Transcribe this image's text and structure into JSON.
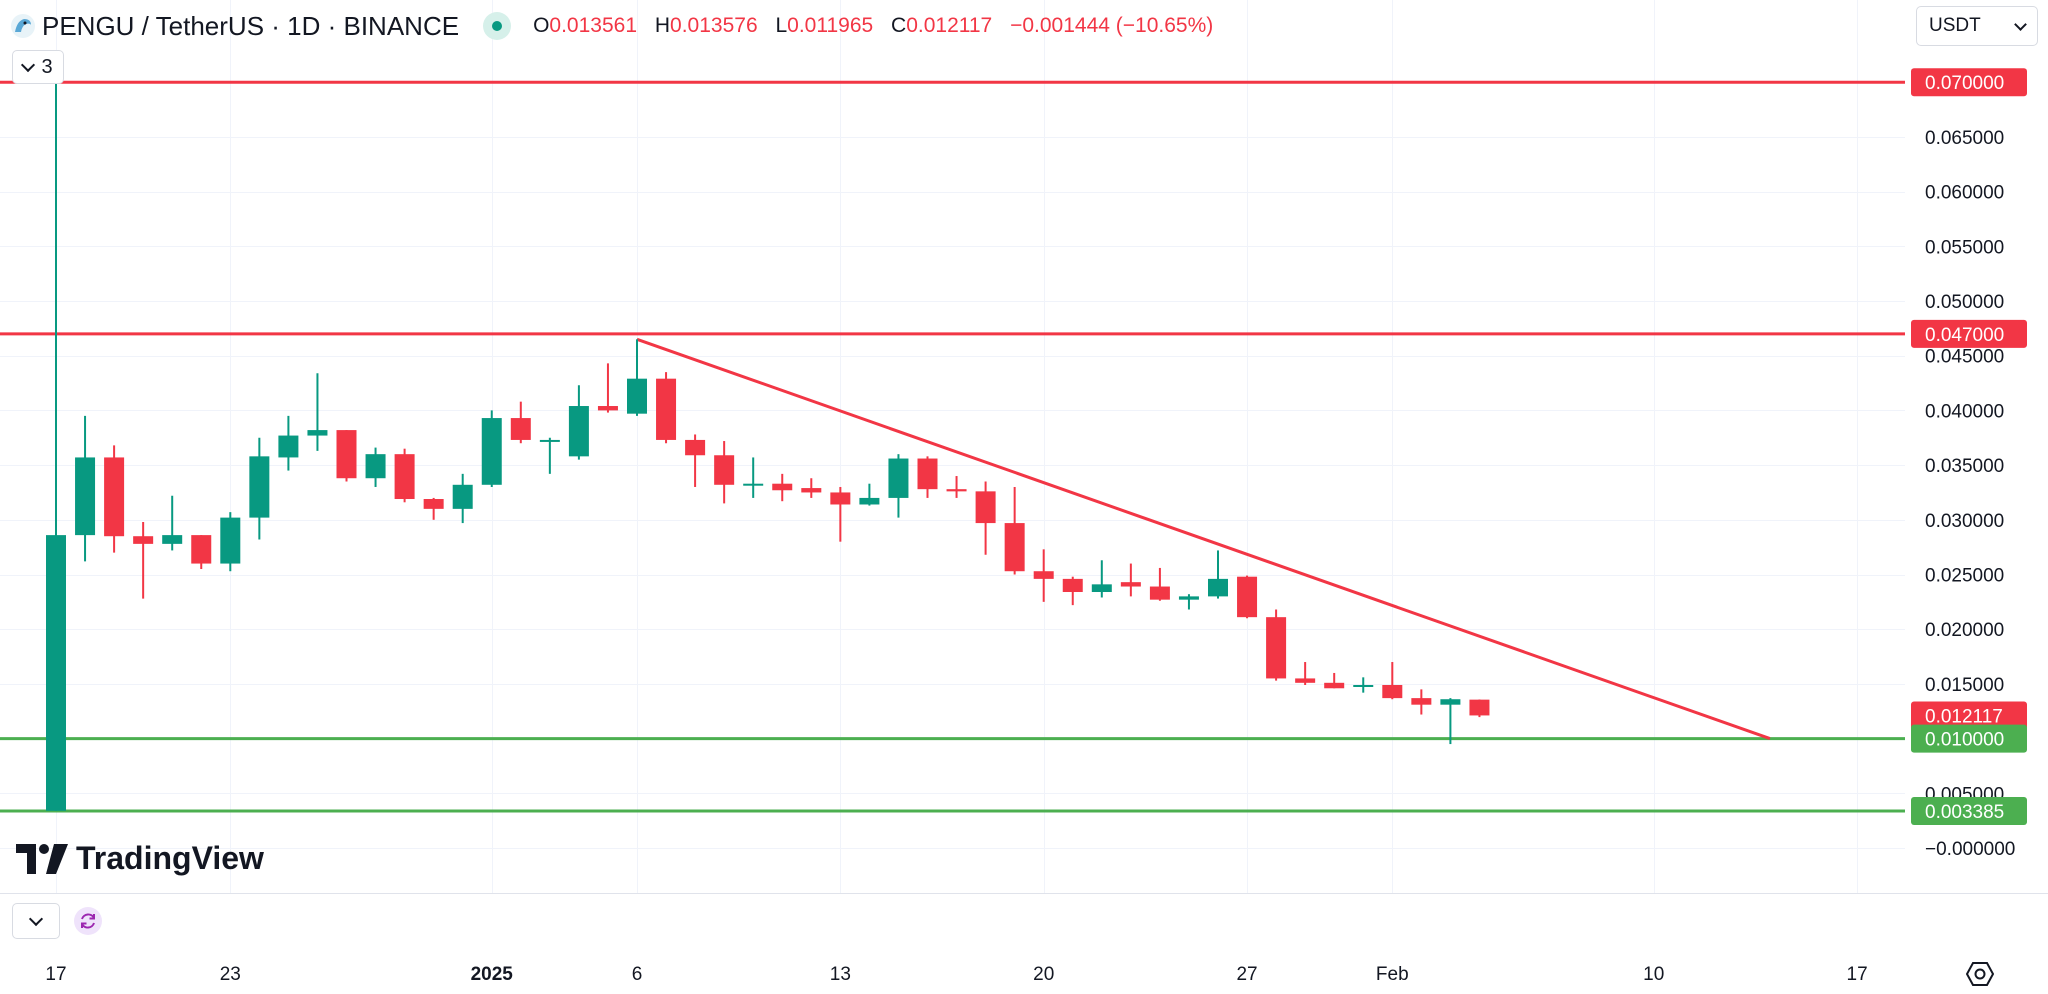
{
  "header": {
    "symbol": "PENGU / TetherUS · 1D · BINANCE",
    "o_key": "O",
    "o_val": "0.013561",
    "h_key": "H",
    "h_val": "0.013576",
    "l_key": "L",
    "l_val": "0.011965",
    "c_key": "C",
    "c_val": "0.012117",
    "change": "−0.001444 (−10.65%)"
  },
  "indicators_count": "3",
  "currency": "USDT",
  "brand": "TradingView",
  "icons": [
    "pengu-logo-icon",
    "chevron-down-icon",
    "refresh-icon",
    "settings-icon"
  ],
  "colors": {
    "up": "#089981",
    "down": "#f23645",
    "resistance": "#f23645",
    "support": "#4caf50",
    "trendline": "#f23645"
  },
  "chart_data": {
    "type": "candlestick",
    "ylim": [
      0.0,
      0.07
    ],
    "y_ticks": [
      "0.065000",
      "0.060000",
      "0.055000",
      "0.050000",
      "0.045000",
      "0.040000",
      "0.035000",
      "0.030000",
      "0.025000",
      "0.020000",
      "0.015000",
      "0.005000",
      "−0.000000"
    ],
    "x_ticks": [
      "17",
      "23",
      "2025",
      "6",
      "13",
      "20",
      "27",
      "Feb",
      "10",
      "17"
    ],
    "x_tick_dates": [
      "2024-12-17",
      "2024-12-23",
      "2025-01-01",
      "2025-01-06",
      "2025-01-13",
      "2025-01-20",
      "2025-01-27",
      "2025-02-01",
      "2025-02-10",
      "2025-02-17"
    ],
    "price_labels": [
      {
        "text": "0.070000",
        "value": 0.07,
        "color": "#f23645"
      },
      {
        "text": "0.047000",
        "value": 0.047,
        "color": "#f23645"
      },
      {
        "text": "0.012117",
        "value": 0.012117,
        "color": "#f23645"
      },
      {
        "text": "0.010000",
        "value": 0.01,
        "color": "#4caf50"
      },
      {
        "text": "0.003385",
        "value": 0.003385,
        "color": "#4caf50"
      }
    ],
    "horizontal_lines": [
      {
        "value": 0.07,
        "color": "#f23645"
      },
      {
        "value": 0.047,
        "color": "#f23645"
      },
      {
        "value": 0.01,
        "color": "#4caf50"
      },
      {
        "value": 0.003385,
        "color": "#4caf50"
      }
    ],
    "trendline": {
      "start": {
        "date": "2025-01-06",
        "value": 0.0465
      },
      "end": {
        "date": "2025-02-14",
        "value": 0.01
      }
    },
    "candles": [
      {
        "date": "2024-12-17",
        "o": 0.0034,
        "h": 0.07,
        "l": 0.0034,
        "c": 0.0286
      },
      {
        "date": "2024-12-18",
        "o": 0.0286,
        "h": 0.0395,
        "l": 0.0262,
        "c": 0.0357
      },
      {
        "date": "2024-12-19",
        "o": 0.0357,
        "h": 0.0368,
        "l": 0.027,
        "c": 0.0285
      },
      {
        "date": "2024-12-20",
        "o": 0.0285,
        "h": 0.0298,
        "l": 0.0228,
        "c": 0.0278
      },
      {
        "date": "2024-12-21",
        "o": 0.0278,
        "h": 0.0322,
        "l": 0.0272,
        "c": 0.0286
      },
      {
        "date": "2024-12-22",
        "o": 0.0286,
        "h": 0.0286,
        "l": 0.0255,
        "c": 0.026
      },
      {
        "date": "2024-12-23",
        "o": 0.026,
        "h": 0.0307,
        "l": 0.0253,
        "c": 0.0302
      },
      {
        "date": "2024-12-24",
        "o": 0.0302,
        "h": 0.0375,
        "l": 0.0282,
        "c": 0.0358
      },
      {
        "date": "2024-12-25",
        "o": 0.0357,
        "h": 0.0395,
        "l": 0.0345,
        "c": 0.0377
      },
      {
        "date": "2024-12-26",
        "o": 0.0377,
        "h": 0.0434,
        "l": 0.0363,
        "c": 0.0382
      },
      {
        "date": "2024-12-27",
        "o": 0.0382,
        "h": 0.0382,
        "l": 0.0335,
        "c": 0.0338
      },
      {
        "date": "2024-12-28",
        "o": 0.0338,
        "h": 0.0366,
        "l": 0.033,
        "c": 0.036
      },
      {
        "date": "2024-12-29",
        "o": 0.036,
        "h": 0.0365,
        "l": 0.0316,
        "c": 0.0319
      },
      {
        "date": "2024-12-30",
        "o": 0.0319,
        "h": 0.032,
        "l": 0.03,
        "c": 0.031
      },
      {
        "date": "2024-12-31",
        "o": 0.031,
        "h": 0.0342,
        "l": 0.0297,
        "c": 0.0332
      },
      {
        "date": "2025-01-01",
        "o": 0.0332,
        "h": 0.04,
        "l": 0.033,
        "c": 0.0393
      },
      {
        "date": "2025-01-02",
        "o": 0.0393,
        "h": 0.0408,
        "l": 0.037,
        "c": 0.0373
      },
      {
        "date": "2025-01-03",
        "o": 0.0373,
        "h": 0.0375,
        "l": 0.0342,
        "c": 0.0373
      },
      {
        "date": "2025-01-04",
        "o": 0.0358,
        "h": 0.0423,
        "l": 0.0355,
        "c": 0.0404
      },
      {
        "date": "2025-01-05",
        "o": 0.0404,
        "h": 0.0443,
        "l": 0.0398,
        "c": 0.04
      },
      {
        "date": "2025-01-06",
        "o": 0.0397,
        "h": 0.0465,
        "l": 0.0395,
        "c": 0.0429
      },
      {
        "date": "2025-01-07",
        "o": 0.0429,
        "h": 0.0435,
        "l": 0.037,
        "c": 0.0373
      },
      {
        "date": "2025-01-08",
        "o": 0.0373,
        "h": 0.0378,
        "l": 0.033,
        "c": 0.0359
      },
      {
        "date": "2025-01-09",
        "o": 0.0359,
        "h": 0.0372,
        "l": 0.0315,
        "c": 0.0332
      },
      {
        "date": "2025-01-10",
        "o": 0.0333,
        "h": 0.0357,
        "l": 0.032,
        "c": 0.0333
      },
      {
        "date": "2025-01-11",
        "o": 0.0333,
        "h": 0.0342,
        "l": 0.0317,
        "c": 0.0327
      },
      {
        "date": "2025-01-12",
        "o": 0.0329,
        "h": 0.0338,
        "l": 0.032,
        "c": 0.0325
      },
      {
        "date": "2025-01-13",
        "o": 0.0325,
        "h": 0.033,
        "l": 0.028,
        "c": 0.0314
      },
      {
        "date": "2025-01-14",
        "o": 0.0314,
        "h": 0.0333,
        "l": 0.0313,
        "c": 0.032
      },
      {
        "date": "2025-01-15",
        "o": 0.032,
        "h": 0.036,
        "l": 0.0302,
        "c": 0.0356
      },
      {
        "date": "2025-01-16",
        "o": 0.0356,
        "h": 0.0358,
        "l": 0.032,
        "c": 0.0328
      },
      {
        "date": "2025-01-17",
        "o": 0.0328,
        "h": 0.034,
        "l": 0.032,
        "c": 0.0326
      },
      {
        "date": "2025-01-18",
        "o": 0.0326,
        "h": 0.0335,
        "l": 0.0268,
        "c": 0.0297
      },
      {
        "date": "2025-01-19",
        "o": 0.0297,
        "h": 0.033,
        "l": 0.025,
        "c": 0.0253
      },
      {
        "date": "2025-01-20",
        "o": 0.0253,
        "h": 0.0273,
        "l": 0.0225,
        "c": 0.0246
      },
      {
        "date": "2025-01-21",
        "o": 0.0246,
        "h": 0.0248,
        "l": 0.0222,
        "c": 0.0234
      },
      {
        "date": "2025-01-22",
        "o": 0.0234,
        "h": 0.0263,
        "l": 0.0229,
        "c": 0.0241
      },
      {
        "date": "2025-01-23",
        "o": 0.0243,
        "h": 0.026,
        "l": 0.023,
        "c": 0.0239
      },
      {
        "date": "2025-01-24",
        "o": 0.0239,
        "h": 0.0256,
        "l": 0.0226,
        "c": 0.0227
      },
      {
        "date": "2025-01-25",
        "o": 0.0227,
        "h": 0.0232,
        "l": 0.0218,
        "c": 0.023
      },
      {
        "date": "2025-01-26",
        "o": 0.023,
        "h": 0.0272,
        "l": 0.0228,
        "c": 0.0246
      },
      {
        "date": "2025-01-27",
        "o": 0.0248,
        "h": 0.0249,
        "l": 0.021,
        "c": 0.0211
      },
      {
        "date": "2025-01-28",
        "o": 0.0211,
        "h": 0.0218,
        "l": 0.0153,
        "c": 0.0155
      },
      {
        "date": "2025-01-29",
        "o": 0.0155,
        "h": 0.017,
        "l": 0.0149,
        "c": 0.0151
      },
      {
        "date": "2025-01-30",
        "o": 0.0151,
        "h": 0.016,
        "l": 0.0146,
        "c": 0.0146
      },
      {
        "date": "2025-01-31",
        "o": 0.0149,
        "h": 0.0156,
        "l": 0.0142,
        "c": 0.0149
      },
      {
        "date": "2025-02-01",
        "o": 0.0149,
        "h": 0.017,
        "l": 0.0136,
        "c": 0.0137
      },
      {
        "date": "2025-02-02",
        "o": 0.0137,
        "h": 0.0145,
        "l": 0.0122,
        "c": 0.0131
      },
      {
        "date": "2025-02-03",
        "o": 0.0131,
        "h": 0.0137,
        "l": 0.0095,
        "c": 0.0136
      },
      {
        "date": "2025-02-04",
        "o": 0.013561,
        "h": 0.013576,
        "l": 0.011965,
        "c": 0.012117
      }
    ]
  }
}
